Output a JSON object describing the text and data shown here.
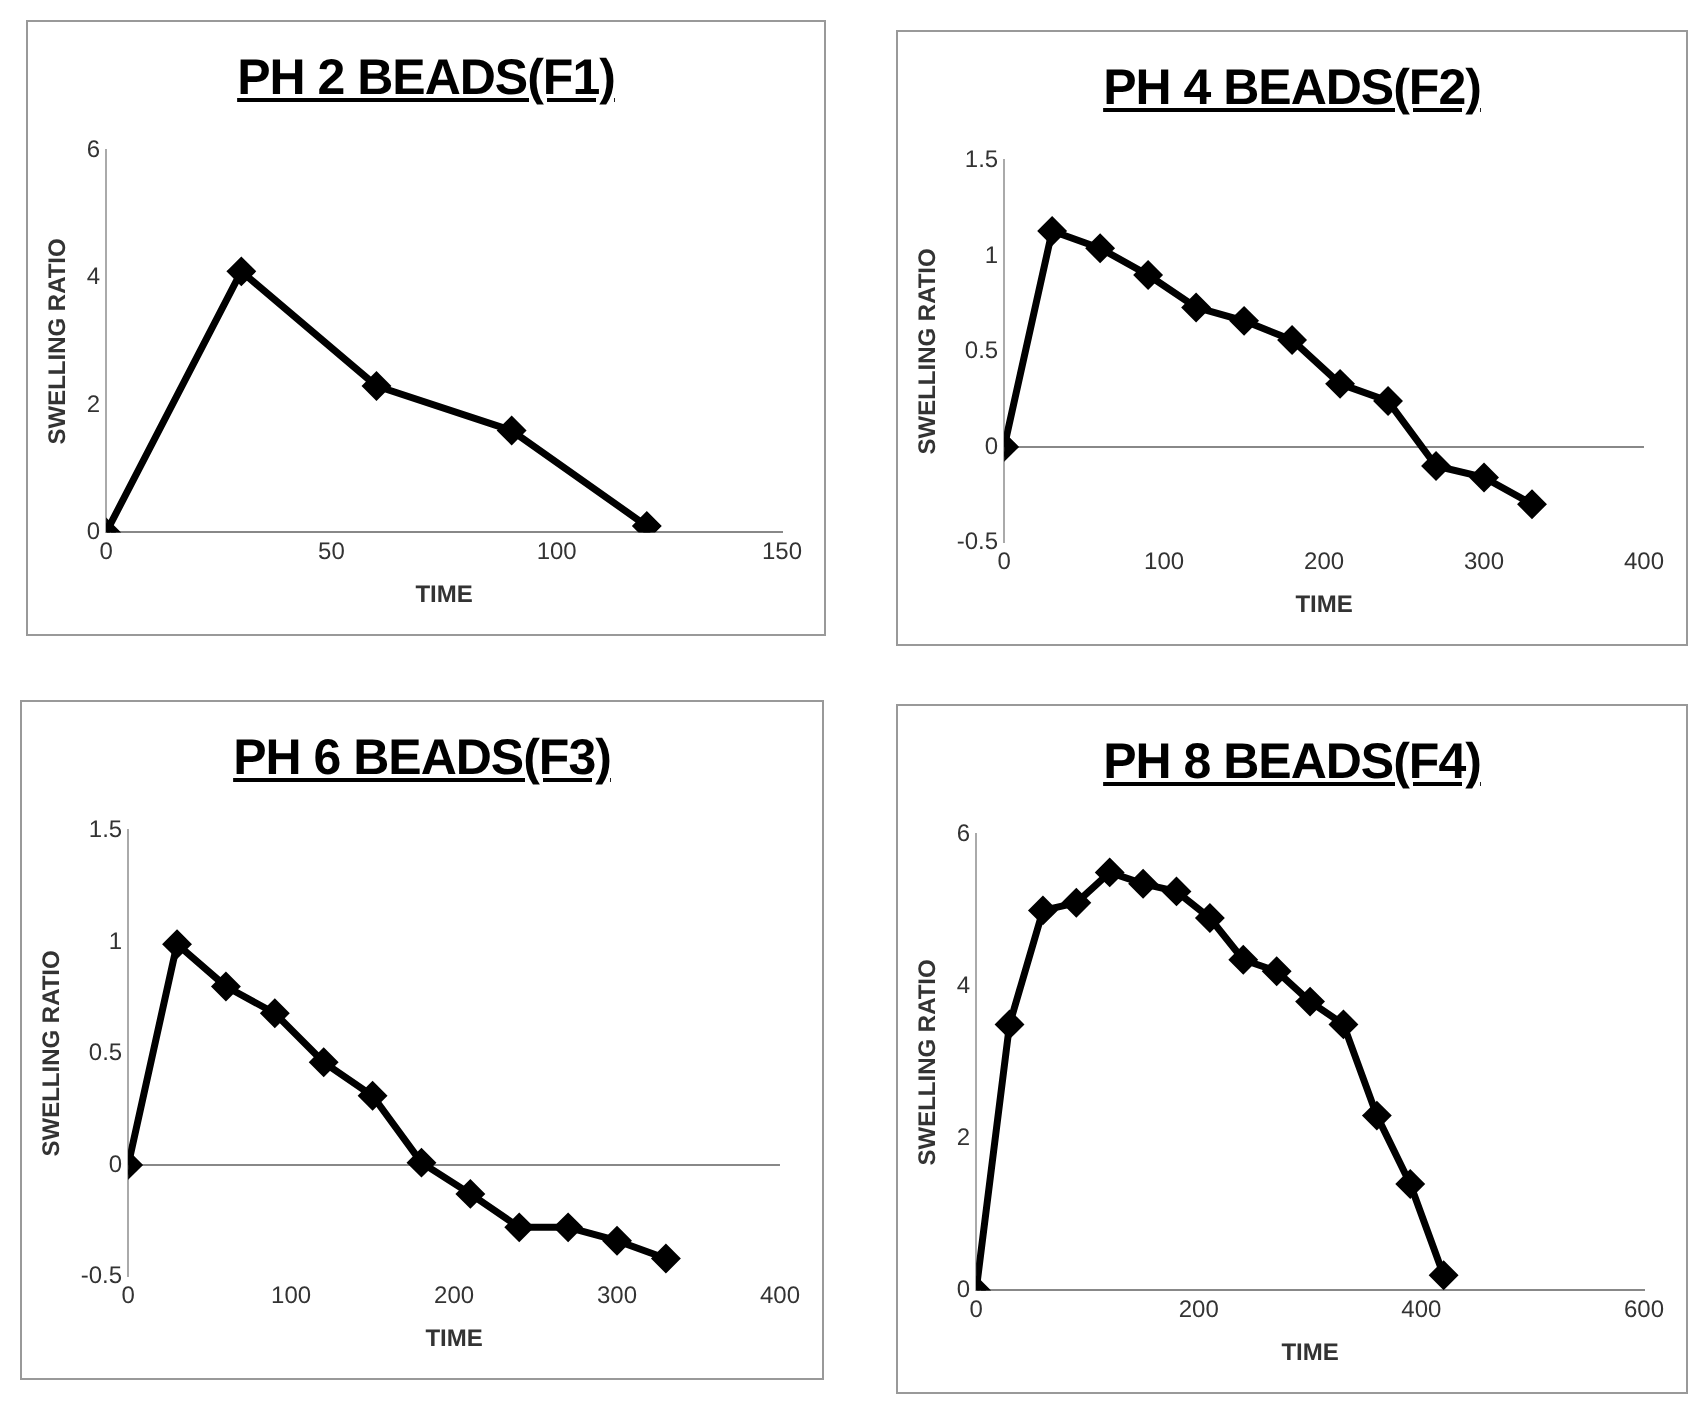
{
  "chart_data": [
    {
      "type": "line",
      "title": "PH 2 BEADS(F1)",
      "xlabel": "TIME",
      "ylabel": "SWELLING RATIO",
      "marker": "diamond",
      "grid": false,
      "legend": false,
      "series": [
        {
          "color": "#000000",
          "x": [
            0,
            30,
            60,
            90,
            120
          ],
          "values": [
            0,
            4.1,
            2.3,
            1.6,
            0.1
          ]
        }
      ],
      "xlim": [
        0,
        150
      ],
      "xticks": [
        0,
        50,
        100,
        150
      ],
      "ylim": [
        0,
        6
      ],
      "yticks": [
        0,
        2,
        4,
        6
      ]
    },
    {
      "type": "line",
      "title": "PH 4 BEADS(F2)",
      "xlabel": "TIME",
      "ylabel": "SWELLING RATIO",
      "marker": "diamond",
      "grid": false,
      "legend": false,
      "series": [
        {
          "color": "#000000",
          "x": [
            0,
            30,
            60,
            90,
            120,
            150,
            180,
            210,
            240,
            270,
            300,
            330
          ],
          "values": [
            0,
            1.13,
            1.04,
            0.9,
            0.73,
            0.66,
            0.56,
            0.33,
            0.24,
            -0.1,
            -0.16,
            -0.3
          ]
        }
      ],
      "xlim": [
        0,
        400
      ],
      "xticks": [
        0,
        100,
        200,
        300,
        400
      ],
      "ylim": [
        -0.5,
        1.5
      ],
      "yticks": [
        -0.5,
        0,
        0.5,
        1,
        1.5
      ],
      "ref_lines": [
        {
          "axis": "y",
          "value": 0,
          "color": "#888888"
        }
      ]
    },
    {
      "type": "line",
      "title": "PH 6 BEADS(F3)",
      "xlabel": "TIME",
      "ylabel": "SWELLING RATIO",
      "marker": "diamond",
      "grid": false,
      "legend": false,
      "series": [
        {
          "color": "#000000",
          "x": [
            0,
            30,
            60,
            90,
            120,
            150,
            180,
            210,
            240,
            270,
            300,
            330
          ],
          "values": [
            0,
            0.99,
            0.8,
            0.68,
            0.46,
            0.31,
            0.01,
            -0.13,
            -0.28,
            -0.28,
            -0.34,
            -0.42
          ]
        }
      ],
      "xlim": [
        0,
        400
      ],
      "xticks": [
        0,
        100,
        200,
        300,
        400
      ],
      "ylim": [
        -0.5,
        1.5
      ],
      "yticks": [
        -0.5,
        0,
        0.5,
        1,
        1.5
      ],
      "ref_lines": [
        {
          "axis": "y",
          "value": 0,
          "color": "#888888"
        }
      ]
    },
    {
      "type": "line",
      "title": "PH 8 BEADS(F4)",
      "xlabel": "TIME",
      "ylabel": "SWELLING RATIO",
      "marker": "diamond",
      "grid": false,
      "legend": false,
      "series": [
        {
          "color": "#000000",
          "x": [
            0,
            30,
            60,
            90,
            120,
            150,
            180,
            210,
            240,
            270,
            300,
            330,
            360,
            390,
            420
          ],
          "values": [
            0,
            3.5,
            5.0,
            5.1,
            5.5,
            5.35,
            5.25,
            4.9,
            4.35,
            4.2,
            3.8,
            3.5,
            2.3,
            1.4,
            0.2
          ]
        }
      ],
      "xlim": [
        0,
        600
      ],
      "xticks": [
        0,
        200,
        400,
        600
      ],
      "ylim": [
        0,
        6
      ],
      "yticks": [
        0,
        2,
        4,
        6
      ]
    }
  ]
}
